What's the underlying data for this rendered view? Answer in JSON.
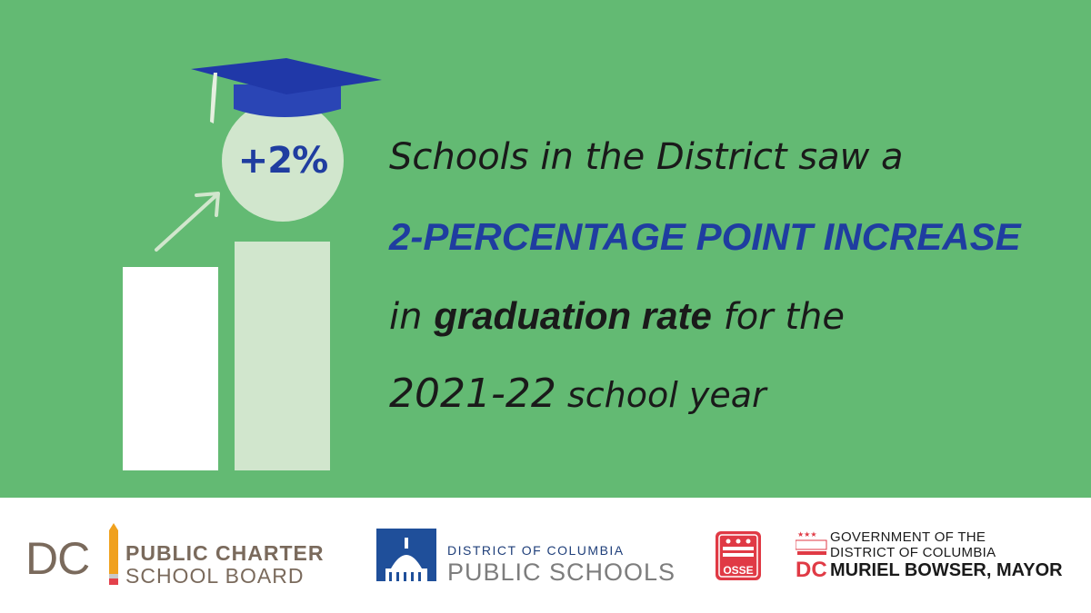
{
  "graphic": {
    "badge_text": "+2%",
    "colors": {
      "background": "#63ba73",
      "light_bar": "#d1e6cd",
      "white_bar": "#ffffff",
      "accent_blue": "#1f3da0",
      "cap_blue": "#2038a8"
    }
  },
  "headline": {
    "line1": "Schools in the District saw a",
    "line2": "2-percentage point increase",
    "line3_prefix": "in ",
    "line3_strong": "graduation rate",
    "line3_suffix": " for the",
    "line4_year": "2021-22",
    "line4_rest": " school year"
  },
  "footer": {
    "pcsb": {
      "mark": "DC",
      "line1": "PUBLIC CHARTER",
      "line2": "SCHOOL BOARD"
    },
    "dcps": {
      "line1": "DISTRICT OF COLUMBIA",
      "line2": "PUBLIC SCHOOLS"
    },
    "osse": {
      "label": "OSSE"
    },
    "gov": {
      "line1": "GOVERNMENT OF THE",
      "line2": "DISTRICT OF COLUMBIA",
      "line3": "MURIEL BOWSER, MAYOR"
    }
  }
}
